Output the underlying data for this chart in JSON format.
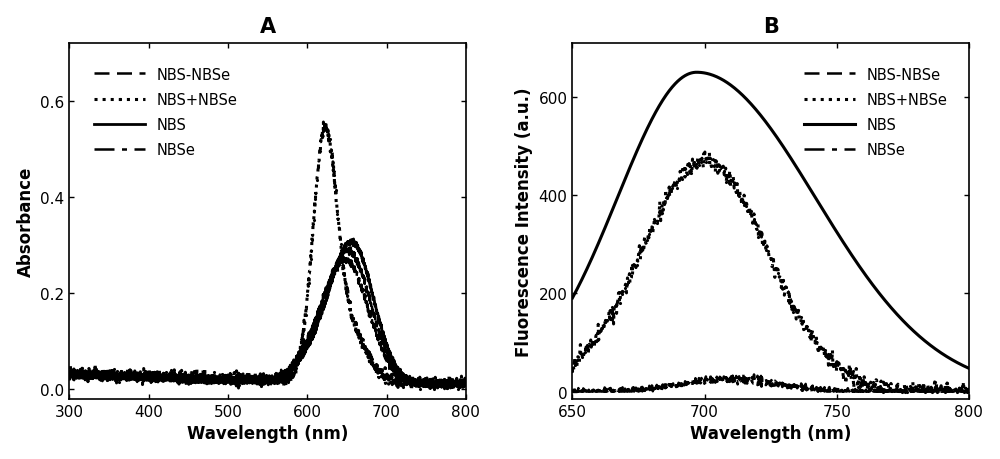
{
  "panel_A": {
    "title": "A",
    "xlabel": "Wavelength (nm)",
    "ylabel": "Absorbance",
    "xlim": [
      300,
      800
    ],
    "ylim": [
      -0.02,
      0.72
    ],
    "yticks": [
      0.0,
      0.2,
      0.4,
      0.6
    ],
    "xticks": [
      300,
      400,
      500,
      600,
      700,
      800
    ]
  },
  "panel_B": {
    "title": "B",
    "xlabel": "Wavelength (nm)",
    "ylabel": "Fluorescence Intensity (a.u.)",
    "xlim": [
      650,
      800
    ],
    "ylim": [
      -15,
      710
    ],
    "yticks": [
      0,
      200,
      400,
      600
    ],
    "xticks": [
      650,
      700,
      750,
      800
    ]
  },
  "line_color": "#000000",
  "background_color": "#ffffff",
  "title_fontsize": 15,
  "label_fontsize": 12,
  "tick_fontsize": 11,
  "legend_fontsize": 10.5
}
